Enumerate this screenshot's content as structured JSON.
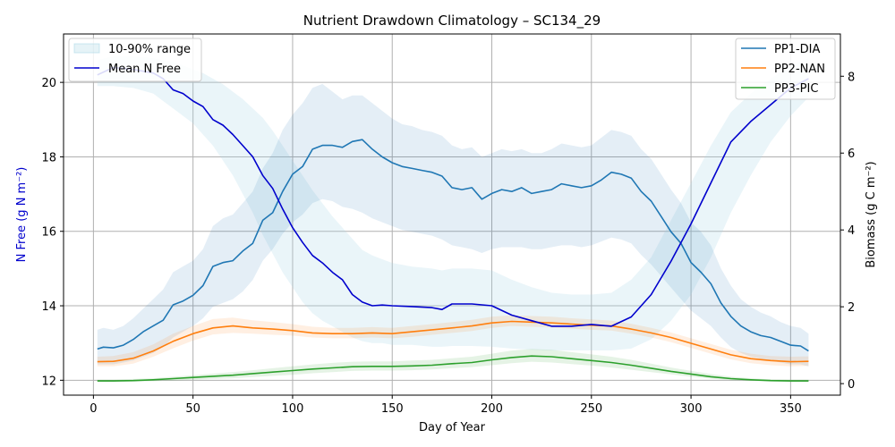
{
  "chart_data": {
    "type": "line",
    "title": "Nutrient Drawdown Climatology – SC134_29",
    "xlabel": "Day of Year",
    "ylabel_left": "N Free (g N m⁻²)",
    "ylabel_right": "Biomass (g C m⁻²)",
    "xlim": [
      -15,
      375
    ],
    "ylim_left": [
      11.6,
      21.3
    ],
    "ylim_right": [
      -0.3,
      9.1
    ],
    "x_ticks": [
      0,
      50,
      100,
      150,
      200,
      250,
      300,
      350
    ],
    "y_ticks_left": [
      12,
      14,
      16,
      18,
      20
    ],
    "y_ticks_right": [
      0,
      2,
      4,
      6,
      8
    ],
    "grid": true,
    "legend_left": {
      "placement": "upper-left",
      "entries": [
        {
          "label": "10-90% range",
          "kind": "band",
          "color": "#add8e6"
        },
        {
          "label": "Mean N Free",
          "kind": "line",
          "color": "#0000cd"
        }
      ]
    },
    "legend_right": {
      "placement": "upper-right",
      "entries": [
        {
          "label": "PP1-DIA",
          "color": "#1f77b4"
        },
        {
          "label": "PP2-NAN",
          "color": "#ff7f0e"
        },
        {
          "label": "PP3-PIC",
          "color": "#2ca02c"
        }
      ]
    },
    "n_free": {
      "name": "Mean N Free",
      "color": "#0000cd",
      "axis": "left",
      "x": [
        2,
        10,
        20,
        30,
        35,
        40,
        45,
        50,
        55,
        60,
        65,
        70,
        75,
        80,
        85,
        90,
        95,
        100,
        105,
        110,
        115,
        120,
        125,
        130,
        135,
        140,
        145,
        150,
        160,
        170,
        175,
        180,
        190,
        200,
        210,
        220,
        230,
        240,
        250,
        260,
        270,
        280,
        290,
        300,
        310,
        320,
        330,
        340,
        350,
        359
      ],
      "y": [
        20.2,
        20.4,
        20.35,
        20.25,
        20.1,
        19.8,
        19.7,
        19.5,
        19.35,
        19.0,
        18.85,
        18.6,
        18.3,
        18.0,
        17.5,
        17.15,
        16.6,
        16.1,
        15.7,
        15.35,
        15.15,
        14.9,
        14.7,
        14.3,
        14.1,
        14.0,
        14.02,
        14.0,
        13.98,
        13.95,
        13.9,
        14.05,
        14.05,
        14.0,
        13.75,
        13.6,
        13.45,
        13.45,
        13.5,
        13.45,
        13.7,
        14.3,
        15.2,
        16.2,
        17.3,
        18.4,
        18.95,
        19.4,
        19.85,
        20.1
      ],
      "band_low": [
        19.9,
        19.9,
        19.85,
        19.7,
        19.5,
        19.3,
        19.1,
        18.9,
        18.6,
        18.3,
        17.9,
        17.5,
        17.0,
        16.5,
        15.9,
        15.4,
        14.9,
        14.5,
        14.1,
        13.8,
        13.6,
        13.45,
        13.3,
        13.15,
        13.05,
        13.0,
        13.0,
        12.95,
        12.95,
        12.9,
        12.9,
        12.92,
        12.92,
        12.9,
        12.85,
        12.82,
        12.8,
        12.8,
        12.8,
        12.8,
        12.85,
        13.1,
        13.6,
        14.3,
        15.3,
        16.5,
        17.5,
        18.4,
        19.1,
        19.6
      ],
      "band_high": [
        20.6,
        20.7,
        20.7,
        20.65,
        20.6,
        20.55,
        20.45,
        20.35,
        20.25,
        20.1,
        19.95,
        19.75,
        19.55,
        19.3,
        19.05,
        18.7,
        18.3,
        17.9,
        17.5,
        17.1,
        16.75,
        16.4,
        16.1,
        15.8,
        15.5,
        15.35,
        15.25,
        15.15,
        15.05,
        15.0,
        14.95,
        15.0,
        15.0,
        14.95,
        14.7,
        14.5,
        14.35,
        14.3,
        14.3,
        14.35,
        14.7,
        15.3,
        16.3,
        17.3,
        18.3,
        19.2,
        19.7,
        20.1,
        20.45,
        20.65
      ]
    },
    "series": [
      {
        "name": "PP1-DIA",
        "color": "#1f77b4",
        "axis": "right",
        "x": [
          2,
          5,
          10,
          15,
          20,
          25,
          30,
          35,
          40,
          45,
          50,
          55,
          60,
          65,
          70,
          75,
          80,
          85,
          90,
          95,
          100,
          105,
          110,
          115,
          120,
          125,
          130,
          135,
          140,
          145,
          150,
          155,
          160,
          165,
          170,
          175,
          180,
          185,
          190,
          195,
          200,
          205,
          210,
          215,
          220,
          225,
          230,
          235,
          240,
          245,
          250,
          255,
          260,
          265,
          270,
          275,
          280,
          285,
          290,
          295,
          300,
          305,
          310,
          315,
          320,
          325,
          330,
          335,
          340,
          345,
          350,
          355,
          359
        ],
        "y": [
          0.9,
          0.95,
          0.93,
          1.0,
          1.15,
          1.35,
          1.5,
          1.65,
          2.05,
          2.15,
          2.3,
          2.55,
          3.05,
          3.15,
          3.2,
          3.45,
          3.65,
          4.25,
          4.45,
          5.0,
          5.45,
          5.65,
          6.1,
          6.2,
          6.2,
          6.15,
          6.3,
          6.35,
          6.1,
          5.9,
          5.75,
          5.65,
          5.6,
          5.55,
          5.5,
          5.4,
          5.1,
          5.05,
          5.1,
          4.8,
          4.95,
          5.05,
          5.0,
          5.1,
          4.95,
          5.0,
          5.05,
          5.2,
          5.15,
          5.1,
          5.15,
          5.3,
          5.5,
          5.45,
          5.35,
          5.0,
          4.75,
          4.35,
          3.95,
          3.65,
          3.15,
          2.9,
          2.6,
          2.1,
          1.75,
          1.5,
          1.35,
          1.25,
          1.2,
          1.1,
          1.0,
          0.98,
          0.85
        ],
        "band_low": [
          0.5,
          0.5,
          0.5,
          0.55,
          0.6,
          0.7,
          0.8,
          0.95,
          1.2,
          1.35,
          1.5,
          1.7,
          2.0,
          2.1,
          2.2,
          2.4,
          2.7,
          3.2,
          3.5,
          3.9,
          4.2,
          4.4,
          4.7,
          4.8,
          4.75,
          4.6,
          4.55,
          4.45,
          4.3,
          4.2,
          4.1,
          4.0,
          3.95,
          3.9,
          3.85,
          3.75,
          3.6,
          3.55,
          3.5,
          3.4,
          3.5,
          3.55,
          3.55,
          3.55,
          3.5,
          3.5,
          3.55,
          3.6,
          3.6,
          3.55,
          3.6,
          3.7,
          3.8,
          3.75,
          3.65,
          3.35,
          3.1,
          2.8,
          2.5,
          2.2,
          1.9,
          1.7,
          1.5,
          1.2,
          0.95,
          0.8,
          0.7,
          0.65,
          0.6,
          0.55,
          0.5,
          0.5,
          0.45
        ],
        "band_high": [
          1.4,
          1.45,
          1.4,
          1.5,
          1.7,
          1.95,
          2.2,
          2.45,
          2.9,
          3.05,
          3.2,
          3.5,
          4.1,
          4.3,
          4.4,
          4.7,
          5.0,
          5.6,
          6.0,
          6.6,
          7.0,
          7.3,
          7.7,
          7.8,
          7.6,
          7.4,
          7.5,
          7.5,
          7.3,
          7.1,
          6.9,
          6.75,
          6.7,
          6.6,
          6.55,
          6.45,
          6.2,
          6.1,
          6.15,
          5.9,
          6.0,
          6.1,
          6.05,
          6.1,
          6.0,
          6.0,
          6.1,
          6.25,
          6.2,
          6.15,
          6.2,
          6.4,
          6.6,
          6.55,
          6.45,
          6.1,
          5.85,
          5.45,
          5.05,
          4.7,
          4.2,
          3.95,
          3.6,
          3.0,
          2.55,
          2.2,
          2.0,
          1.85,
          1.75,
          1.6,
          1.5,
          1.45,
          1.3
        ]
      },
      {
        "name": "PP2-NAN",
        "color": "#ff7f0e",
        "axis": "right",
        "x": [
          2,
          10,
          20,
          30,
          40,
          50,
          60,
          70,
          80,
          90,
          100,
          110,
          120,
          130,
          140,
          150,
          160,
          170,
          180,
          190,
          200,
          210,
          220,
          230,
          240,
          250,
          260,
          270,
          280,
          290,
          300,
          310,
          320,
          330,
          340,
          350,
          359
        ],
        "y": [
          0.57,
          0.58,
          0.66,
          0.85,
          1.1,
          1.3,
          1.45,
          1.5,
          1.45,
          1.42,
          1.38,
          1.32,
          1.3,
          1.3,
          1.32,
          1.3,
          1.35,
          1.4,
          1.45,
          1.5,
          1.58,
          1.62,
          1.6,
          1.58,
          1.55,
          1.52,
          1.5,
          1.42,
          1.32,
          1.2,
          1.05,
          0.9,
          0.75,
          0.65,
          0.6,
          0.57,
          0.58
        ],
        "band_low": [
          0.45,
          0.45,
          0.52,
          0.7,
          0.92,
          1.12,
          1.28,
          1.32,
          1.3,
          1.27,
          1.25,
          1.2,
          1.18,
          1.18,
          1.2,
          1.18,
          1.22,
          1.27,
          1.32,
          1.37,
          1.45,
          1.5,
          1.48,
          1.46,
          1.43,
          1.4,
          1.38,
          1.3,
          1.2,
          1.08,
          0.93,
          0.78,
          0.63,
          0.53,
          0.48,
          0.45,
          0.46
        ],
        "band_high": [
          0.7,
          0.72,
          0.82,
          1.02,
          1.3,
          1.5,
          1.68,
          1.72,
          1.65,
          1.6,
          1.55,
          1.48,
          1.45,
          1.45,
          1.47,
          1.45,
          1.5,
          1.55,
          1.6,
          1.66,
          1.74,
          1.78,
          1.76,
          1.74,
          1.7,
          1.67,
          1.64,
          1.56,
          1.45,
          1.33,
          1.18,
          1.03,
          0.88,
          0.78,
          0.72,
          0.7,
          0.71
        ]
      },
      {
        "name": "PP3-PIC",
        "color": "#2ca02c",
        "axis": "right",
        "x": [
          2,
          10,
          20,
          30,
          40,
          50,
          60,
          70,
          80,
          90,
          100,
          110,
          120,
          130,
          140,
          150,
          160,
          170,
          180,
          190,
          200,
          210,
          220,
          230,
          240,
          250,
          260,
          270,
          280,
          290,
          300,
          310,
          320,
          330,
          340,
          350,
          359
        ],
        "y": [
          0.07,
          0.07,
          0.08,
          0.1,
          0.13,
          0.16,
          0.19,
          0.22,
          0.26,
          0.3,
          0.34,
          0.38,
          0.41,
          0.44,
          0.45,
          0.45,
          0.46,
          0.48,
          0.52,
          0.55,
          0.62,
          0.68,
          0.72,
          0.7,
          0.65,
          0.6,
          0.55,
          0.48,
          0.4,
          0.32,
          0.25,
          0.18,
          0.13,
          0.1,
          0.08,
          0.07,
          0.07
        ],
        "band_low": [
          0.04,
          0.04,
          0.05,
          0.06,
          0.08,
          0.1,
          0.12,
          0.14,
          0.17,
          0.2,
          0.23,
          0.27,
          0.3,
          0.33,
          0.34,
          0.34,
          0.35,
          0.37,
          0.4,
          0.43,
          0.48,
          0.53,
          0.57,
          0.55,
          0.51,
          0.47,
          0.42,
          0.36,
          0.3,
          0.24,
          0.18,
          0.13,
          0.09,
          0.07,
          0.05,
          0.04,
          0.04
        ],
        "band_high": [
          0.1,
          0.1,
          0.12,
          0.14,
          0.18,
          0.22,
          0.26,
          0.3,
          0.35,
          0.4,
          0.45,
          0.5,
          0.54,
          0.57,
          0.58,
          0.58,
          0.6,
          0.62,
          0.66,
          0.7,
          0.78,
          0.86,
          0.9,
          0.88,
          0.82,
          0.76,
          0.7,
          0.62,
          0.52,
          0.42,
          0.33,
          0.25,
          0.18,
          0.14,
          0.11,
          0.1,
          0.1
        ]
      }
    ]
  }
}
